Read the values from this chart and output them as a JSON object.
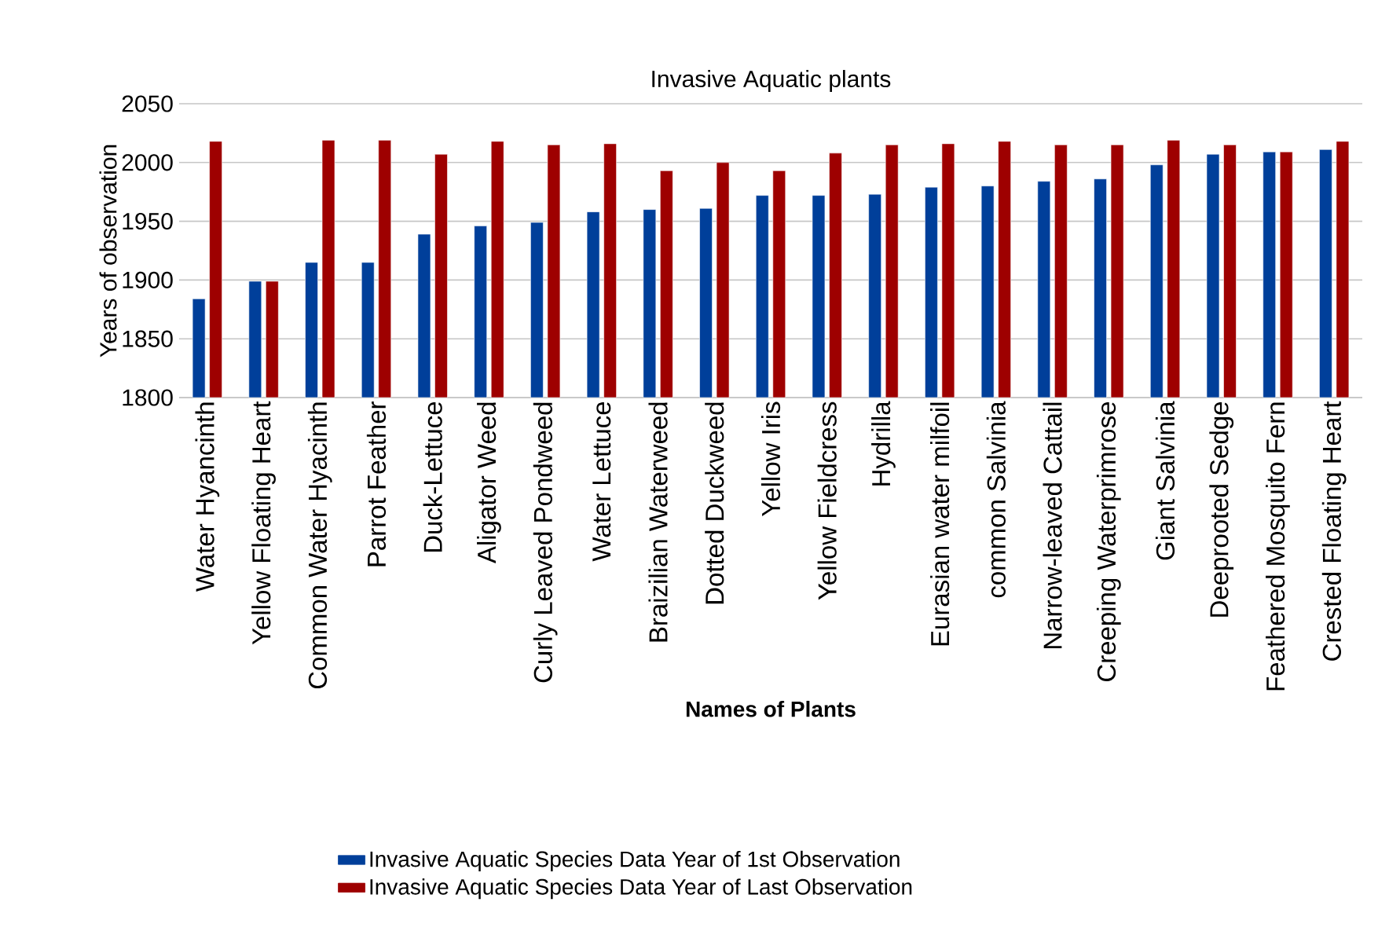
{
  "chart_data": {
    "type": "bar",
    "title": "Invasive Aquatic plants",
    "xlabel": "Names of Plants",
    "ylabel": "Years of observation",
    "categories": [
      "Water Hyancinth",
      "Yellow Floating Heart",
      "Common Water Hyacinth",
      "Parrot Feather",
      "Duck-Lettuce",
      "Aligator Weed",
      "Curly Leaved Pondweed",
      "Water Lettuce",
      "Braizilian Waterweed",
      "Dotted Duckweed",
      "Yellow Iris",
      "Yellow Fieldcress",
      "Hydrilla",
      "Eurasian water milfoil",
      "common Salvinia",
      "Narrow-leaved Cattail",
      "Creeping Waterprimrose",
      "Giant Salvinia",
      "Deeprooted Sedge",
      "Feathered Mosquito Fern",
      "Crested Floating Heart"
    ],
    "series": [
      {
        "name": "Invasive Aquatic Species Data Year of 1st Observation",
        "color": "#003f9a",
        "values": [
          1884,
          1899,
          1915,
          1915,
          1939,
          1946,
          1949,
          1958,
          1960,
          1961,
          1972,
          1972,
          1973,
          1979,
          1980,
          1984,
          1986,
          1998,
          2007,
          2009,
          2011
        ]
      },
      {
        "name": "Invasive Aquatic Species Data Year of Last Observation",
        "color": "#9e0000",
        "values": [
          2018,
          1899,
          2019,
          2019,
          2007,
          2018,
          2015,
          2016,
          1993,
          2000,
          1993,
          2008,
          2015,
          2016,
          2018,
          2015,
          2015,
          2019,
          2015,
          2009,
          2018
        ]
      }
    ],
    "ylim": [
      1800,
      2050
    ],
    "yticks": [
      1800,
      1850,
      1900,
      1950,
      2000,
      2050
    ],
    "grid": "y",
    "legend": "bottom"
  }
}
